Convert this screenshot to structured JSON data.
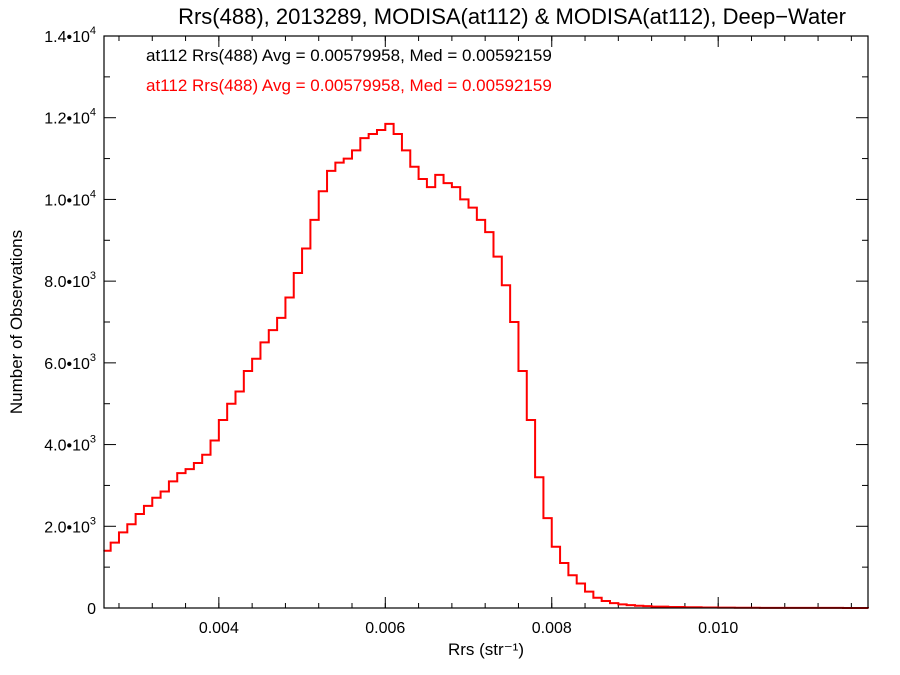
{
  "chart_data": {
    "type": "line",
    "step": true,
    "title": "Rrs(488), 2013289, MODISA(at112) & MODISA(at112), Deep−Water",
    "xlabel": "Rrs (str⁻¹)",
    "ylabel": "Number of Observations",
    "xlim": [
      0.00262,
      0.0118
    ],
    "ylim": [
      0,
      14000
    ],
    "x_ticks": [
      {
        "value": 0.004,
        "label": "0.004"
      },
      {
        "value": 0.006,
        "label": "0.006"
      },
      {
        "value": 0.008,
        "label": "0.008"
      },
      {
        "value": 0.01,
        "label": "0.010"
      }
    ],
    "y_ticks": [
      {
        "value": 0,
        "mantissa": "0",
        "exp": ""
      },
      {
        "value": 2000,
        "mantissa": "2.0•10",
        "exp": "3"
      },
      {
        "value": 4000,
        "mantissa": "4.0•10",
        "exp": "3"
      },
      {
        "value": 6000,
        "mantissa": "6.0•10",
        "exp": "3"
      },
      {
        "value": 8000,
        "mantissa": "8.0•10",
        "exp": "3"
      },
      {
        "value": 10000,
        "mantissa": "1.0•10",
        "exp": "4"
      },
      {
        "value": 12000,
        "mantissa": "1.2•10",
        "exp": "4"
      },
      {
        "value": 14000,
        "mantissa": "1.4•10",
        "exp": "4"
      }
    ],
    "legend": [
      {
        "text": "at112 Rrs(488) Avg = 0.00579958, Med = 0.00592159",
        "color": "#000000"
      },
      {
        "text": "at112 Rrs(488) Avg = 0.00579958, Med = 0.00592159",
        "color": "#ff0000"
      }
    ],
    "series": [
      {
        "color": "#ff0000",
        "x": [
          0.00262,
          0.0027,
          0.0028,
          0.0029,
          0.003,
          0.0031,
          0.0032,
          0.0033,
          0.0034,
          0.0035,
          0.0036,
          0.0037,
          0.0038,
          0.0039,
          0.004,
          0.0041,
          0.0042,
          0.0043,
          0.0044,
          0.0045,
          0.0046,
          0.0047,
          0.0048,
          0.0049,
          0.005,
          0.0051,
          0.0052,
          0.0053,
          0.0054,
          0.0055,
          0.0056,
          0.0057,
          0.0058,
          0.0059,
          0.006,
          0.0061,
          0.0062,
          0.0063,
          0.0064,
          0.0065,
          0.0066,
          0.0067,
          0.0068,
          0.0069,
          0.007,
          0.0071,
          0.0072,
          0.0073,
          0.0074,
          0.0075,
          0.0076,
          0.0077,
          0.0078,
          0.0079,
          0.008,
          0.0081,
          0.0082,
          0.0083,
          0.0084,
          0.0085,
          0.0086,
          0.0087,
          0.0088,
          0.0089,
          0.009,
          0.0091,
          0.0092,
          0.0094,
          0.0096,
          0.0098,
          0.01,
          0.0102,
          0.0105,
          0.0108,
          0.0112,
          0.0115,
          0.0118
        ],
        "y": [
          1400,
          1600,
          1850,
          2050,
          2300,
          2500,
          2700,
          2850,
          3100,
          3300,
          3400,
          3550,
          3750,
          4100,
          4600,
          5000,
          5300,
          5800,
          6100,
          6500,
          6800,
          7100,
          7600,
          8200,
          8800,
          9500,
          10200,
          10700,
          10900,
          11000,
          11200,
          11500,
          11600,
          11700,
          11850,
          11600,
          11200,
          10800,
          10500,
          10300,
          10600,
          10400,
          10300,
          10000,
          9800,
          9500,
          9200,
          8600,
          7900,
          7000,
          5800,
          4600,
          3200,
          2200,
          1500,
          1100,
          800,
          600,
          400,
          250,
          170,
          120,
          90,
          70,
          55,
          45,
          35,
          25,
          18,
          12,
          9,
          6,
          4,
          3,
          2,
          1,
          0
        ]
      }
    ]
  }
}
